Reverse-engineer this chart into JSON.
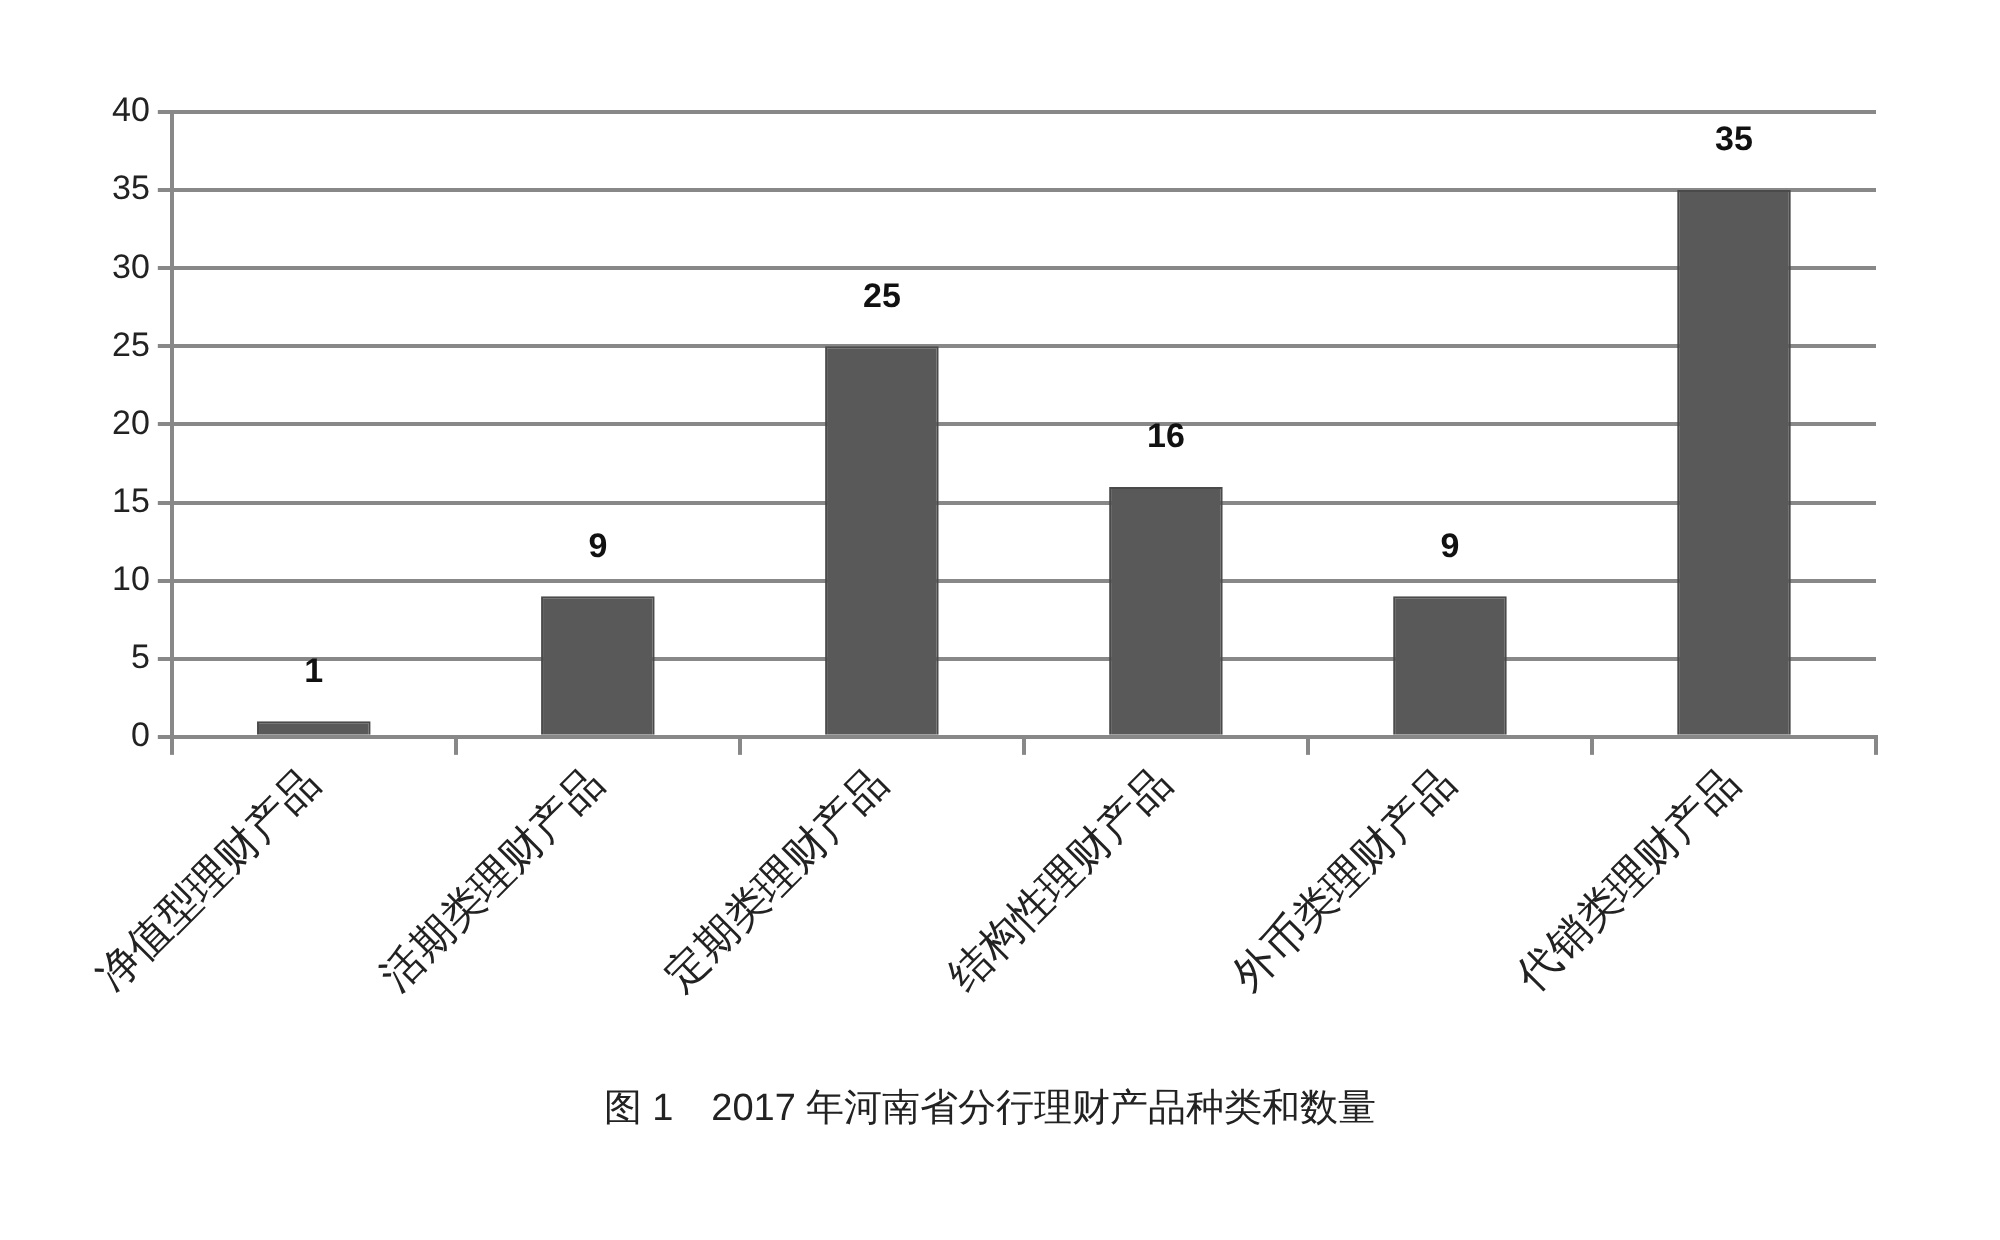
{
  "chart_data": {
    "type": "bar",
    "title": "图 1　2017 年河南省分行理财产品种类和数量",
    "categories": [
      "净值型理财产品",
      "活期类理财产品",
      "定期类理财产品",
      "结构性理财产品",
      "外币类理财产品",
      "代销类理财产品"
    ],
    "values": [
      1,
      9,
      25,
      16,
      9,
      35
    ],
    "color": "#595959",
    "ylim": [
      0,
      40
    ],
    "yticks": [
      0,
      5,
      10,
      15,
      20,
      25,
      30,
      35,
      40
    ],
    "grid": "y",
    "data_labels": true
  }
}
